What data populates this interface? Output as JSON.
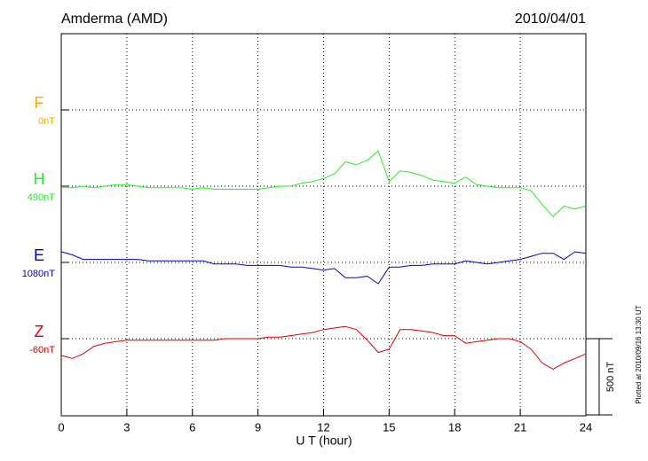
{
  "chart_data": {
    "type": "line",
    "title": "Amderma (AMD)",
    "date": "2010/04/01",
    "plotted_note": "Plotted at 2010/09/16 13:30 UT",
    "x_label": "U T (hour)",
    "xlim": [
      0,
      24
    ],
    "xticks": [
      0,
      3,
      6,
      9,
      12,
      15,
      18,
      21,
      24
    ],
    "grid": true,
    "scale_bar": {
      "value": 500,
      "label": "500 nT"
    },
    "x": [
      0,
      0.5,
      1,
      1.5,
      2,
      2.5,
      3,
      3.5,
      4,
      4.5,
      5,
      5.5,
      6,
      6.5,
      7,
      7.5,
      8,
      8.5,
      9,
      9.5,
      10,
      10.5,
      11,
      11.5,
      12,
      12.5,
      13,
      13.5,
      14,
      14.5,
      15,
      15.5,
      16,
      16.5,
      17,
      17.5,
      18,
      18.5,
      19,
      19.5,
      20,
      20.5,
      21,
      21.5,
      22,
      22.5,
      23,
      23.5,
      24
    ],
    "series": [
      {
        "name": "F",
        "color": "#ffa500",
        "baseline": {
          "value": 0,
          "label": "0nT"
        }
      },
      {
        "name": "H",
        "color": "#22ee22",
        "baseline": {
          "value": 490,
          "label": "490nT"
        },
        "values": [
          480,
          480,
          490,
          480,
          490,
          500,
          500,
          490,
          480,
          480,
          480,
          480,
          470,
          480,
          470,
          470,
          470,
          470,
          470,
          480,
          490,
          490,
          510,
          520,
          540,
          570,
          650,
          630,
          660,
          720,
          520,
          590,
          580,
          560,
          530,
          520,
          510,
          550,
          500,
          490,
          480,
          480,
          480,
          460,
          370,
          290,
          360,
          340,
          360
        ]
      },
      {
        "name": "E",
        "color": "#0000cc",
        "baseline": {
          "value": 1080,
          "label": "1080nT"
        },
        "values": [
          1150,
          1130,
          1100,
          1100,
          1100,
          1100,
          1100,
          1100,
          1090,
          1090,
          1090,
          1090,
          1090,
          1090,
          1070,
          1070,
          1070,
          1060,
          1060,
          1060,
          1060,
          1050,
          1050,
          1040,
          1030,
          1040,
          980,
          980,
          990,
          940,
          1050,
          1050,
          1060,
          1060,
          1070,
          1070,
          1070,
          1090,
          1080,
          1070,
          1080,
          1090,
          1100,
          1120,
          1140,
          1140,
          1100,
          1150,
          1140
        ]
      },
      {
        "name": "Z",
        "color": "#dd0000",
        "baseline": {
          "value": -60,
          "label": "-60nT"
        },
        "values": [
          -170,
          -190,
          -160,
          -110,
          -90,
          -80,
          -70,
          -70,
          -70,
          -70,
          -70,
          -70,
          -70,
          -70,
          -70,
          -60,
          -60,
          -60,
          -60,
          -50,
          -50,
          -40,
          -30,
          -20,
          0,
          10,
          20,
          0,
          -70,
          -150,
          -130,
          0,
          0,
          -10,
          -20,
          -40,
          -40,
          -90,
          -80,
          -70,
          -60,
          -60,
          -80,
          -130,
          -220,
          -260,
          -220,
          -190,
          -160
        ]
      }
    ]
  }
}
